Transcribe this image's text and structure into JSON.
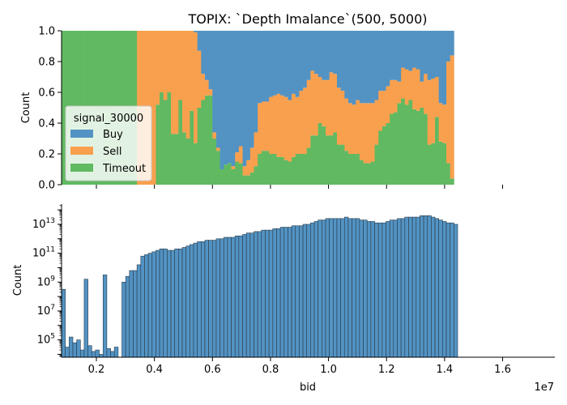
{
  "chart_data": [
    {
      "type": "area",
      "title": "TOPIX: `Depth Imalance`(500, 5000)",
      "xlabel": "",
      "ylabel": "Count",
      "xlim": [
        800000,
        17800000
      ],
      "ylim": [
        0,
        1.0
      ],
      "yticks": [
        0.0,
        0.2,
        0.4,
        0.6,
        0.8,
        1.0
      ],
      "ytick_labels": [
        "0.0",
        "0.2",
        "0.4",
        "0.6",
        "0.8",
        "1.0"
      ],
      "grid": false,
      "legend": {
        "title": "signal_30000",
        "placement": "lower-left",
        "entries": [
          "Buy",
          "Sell",
          "Timeout"
        ]
      },
      "colors": {
        "Buy": "#5293c3",
        "Sell": "#f9a04e",
        "Timeout": "#61b961"
      },
      "bin_width": 130000,
      "x_start": 800000,
      "series": [
        {
          "name": "Timeout",
          "values": [
            1,
            1,
            1,
            1,
            1,
            1,
            1,
            1,
            1,
            1,
            1,
            1,
            1,
            1,
            1,
            1,
            1,
            1,
            1,
            1,
            0,
            0,
            0,
            0,
            0,
            0.52,
            0.6,
            0.55,
            0.6,
            0.33,
            0.33,
            0.55,
            0.34,
            0.3,
            0.48,
            0.27,
            0.5,
            0.55,
            0.58,
            0.58,
            0.3,
            0.22,
            0.1,
            0.13,
            0.14,
            0.1,
            0.15,
            0.14,
            0.06,
            0.06,
            0.08,
            0.12,
            0.2,
            0.22,
            0.22,
            0.2,
            0.2,
            0.18,
            0.18,
            0.16,
            0.15,
            0.18,
            0.2,
            0.2,
            0.2,
            0.24,
            0.32,
            0.32,
            0.4,
            0.38,
            0.32,
            0.32,
            0.34,
            0.26,
            0.26,
            0.22,
            0.2,
            0.2,
            0.2,
            0.16,
            0.14,
            0.14,
            0.15,
            0.26,
            0.35,
            0.38,
            0.4,
            0.46,
            0.47,
            0.53,
            0.56,
            0.52,
            0.55,
            0.49,
            0.48,
            0.5,
            0.46,
            0.26,
            0.27,
            0.44,
            0.28,
            0.27,
            0.14,
            0.04
          ]
        },
        {
          "name": "Sell",
          "values": [
            0,
            0,
            0,
            0,
            0,
            0,
            0,
            0,
            0,
            0,
            0,
            0,
            0,
            0,
            0,
            0,
            0,
            0,
            0,
            0,
            1,
            1,
            1,
            1,
            1,
            0.48,
            0.4,
            0.45,
            0.4,
            0.67,
            0.67,
            0.45,
            0.66,
            0.7,
            0.52,
            0.72,
            0.37,
            0.17,
            0.1,
            0.04,
            0.04,
            0.02,
            0,
            0,
            0,
            0.02,
            0.06,
            0.11,
            0.06,
            0.1,
            0.16,
            0.22,
            0.33,
            0.32,
            0.32,
            0.37,
            0.38,
            0.41,
            0.4,
            0.41,
            0.4,
            0.41,
            0.37,
            0.41,
            0.43,
            0.44,
            0.42,
            0.4,
            0.3,
            0.3,
            0.36,
            0.41,
            0.38,
            0.37,
            0.35,
            0.34,
            0.33,
            0.32,
            0.35,
            0.37,
            0.39,
            0.39,
            0.38,
            0.29,
            0.26,
            0.23,
            0.24,
            0.22,
            0.21,
            0.14,
            0.2,
            0.23,
            0.19,
            0.27,
            0.27,
            0.17,
            0.26,
            0.42,
            0.42,
            0.26,
            0.25,
            0.25,
            0.66,
            0.8
          ]
        },
        {
          "name": "Buy",
          "values": [
            0,
            0,
            0,
            0,
            0,
            0,
            0,
            0,
            0,
            0,
            0,
            0,
            0,
            0,
            0,
            0,
            0,
            0,
            0,
            0,
            0,
            0,
            0,
            0,
            0,
            0,
            0,
            0,
            0,
            0,
            0,
            0,
            0,
            0,
            0,
            0.01,
            0.13,
            0.28,
            0.32,
            0.38,
            0.66,
            0.76,
            0.9,
            0.87,
            0.86,
            0.88,
            0.79,
            0.75,
            0.88,
            0.84,
            0.76,
            0.66,
            0.47,
            0.46,
            0.46,
            0.43,
            0.42,
            0.41,
            0.42,
            0.43,
            0.45,
            0.41,
            0.43,
            0.39,
            0.37,
            0.32,
            0.26,
            0.28,
            0.3,
            0.32,
            0.32,
            0.27,
            0.28,
            0.37,
            0.39,
            0.44,
            0.47,
            0.48,
            0.45,
            0.47,
            0.47,
            0.47,
            0.47,
            0.45,
            0.39,
            0.39,
            0.36,
            0.32,
            0.32,
            0.33,
            0.24,
            0.25,
            0.26,
            0.24,
            0.25,
            0.33,
            0.28,
            0.32,
            0.31,
            0.3,
            0.47,
            0.48,
            0.2,
            0.16
          ]
        }
      ]
    },
    {
      "type": "bar",
      "title": "",
      "xlabel": "bid",
      "ylabel": "Count",
      "xlim": [
        800000,
        17800000
      ],
      "xticks": [
        2000000,
        4000000,
        6000000,
        8000000,
        10000000,
        12000000,
        14000000,
        16000000
      ],
      "xtick_labels": [
        "0.2",
        "0.4",
        "0.6",
        "0.8",
        "1.0",
        "1.2",
        "1.4",
        "1.6"
      ],
      "x_offset_label": "1e7",
      "yscale": "log",
      "ylim_log10": [
        3.8,
        14.4
      ],
      "yticks_log10": [
        5,
        7,
        9,
        11,
        13
      ],
      "ytick_labels": [
        "10^5",
        "10^7",
        "10^9",
        "10^11",
        "10^13"
      ],
      "grid": false,
      "color": "#5293c3",
      "bin_width": 130000,
      "x_start": 800000,
      "log10_counts": [
        8.5,
        4.5,
        5.2,
        4.8,
        5.0,
        4.3,
        9.2,
        4.6,
        4.2,
        4.3,
        4.0,
        9.5,
        4.4,
        4.2,
        4.5,
        3.8,
        9.0,
        9.4,
        9.8,
        9.8,
        10.2,
        10.8,
        10.9,
        11.0,
        11.1,
        11.2,
        11.3,
        11.3,
        11.2,
        11.2,
        11.3,
        11.3,
        11.4,
        11.5,
        11.6,
        11.7,
        11.8,
        11.8,
        11.9,
        11.9,
        11.9,
        12.0,
        12.0,
        12.1,
        12.1,
        12.1,
        12.2,
        12.2,
        12.3,
        12.4,
        12.4,
        12.5,
        12.5,
        12.6,
        12.6,
        12.6,
        12.7,
        12.7,
        12.8,
        12.8,
        12.8,
        12.9,
        12.9,
        12.9,
        13.0,
        13.0,
        13.1,
        13.2,
        13.3,
        13.3,
        13.4,
        13.4,
        13.4,
        13.4,
        13.4,
        13.5,
        13.4,
        13.4,
        13.4,
        13.3,
        13.3,
        13.2,
        13.2,
        13.1,
        13.1,
        13.1,
        13.2,
        13.3,
        13.3,
        13.4,
        13.4,
        13.5,
        13.5,
        13.5,
        13.5,
        13.6,
        13.6,
        13.6,
        13.5,
        13.4,
        13.3,
        13.2,
        13.1,
        13.1,
        13.0
      ]
    }
  ]
}
